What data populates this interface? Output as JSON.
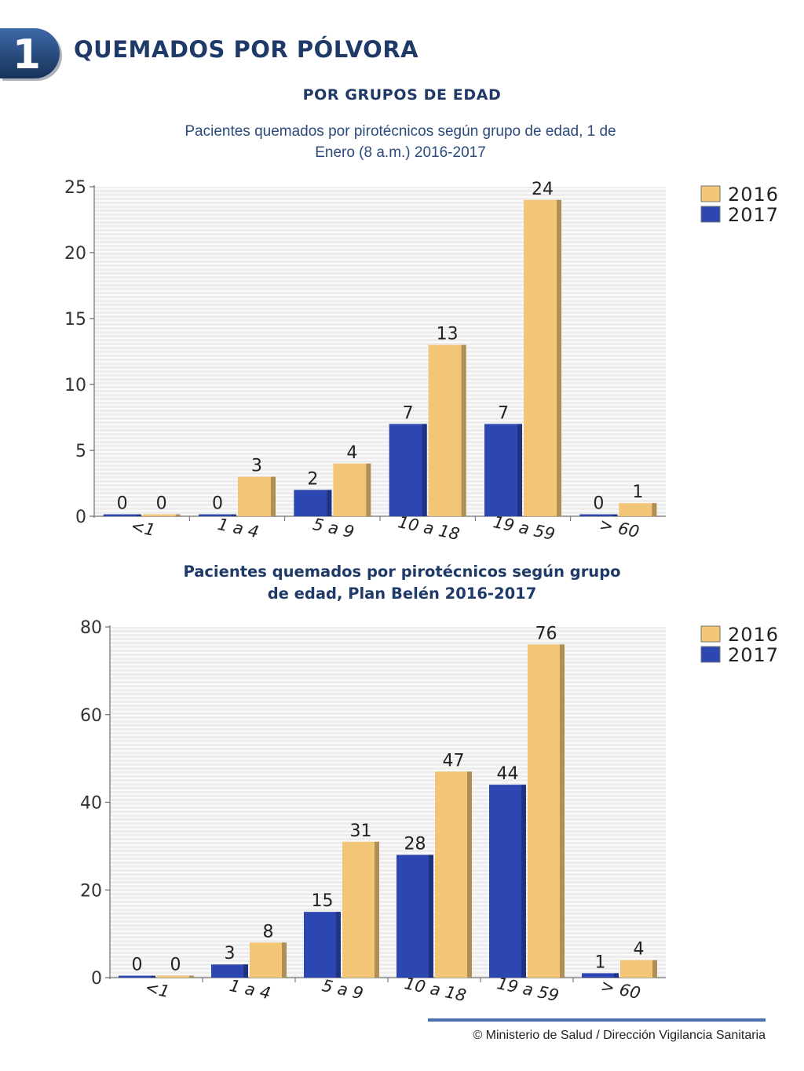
{
  "header": {
    "section_number": "1",
    "title": "QUEMADOS POR PÓLVORA",
    "subtitle": "POR GRUPOS DE EDAD"
  },
  "colors": {
    "series_2016": "#f3c677",
    "series_2017": "#2d47b2",
    "title": "#1f3a68",
    "badge": "#1f3a68"
  },
  "footer": {
    "text": "© Ministerio de Salud / Dirección Vigilancia Sanitaria"
  },
  "chart_data": [
    {
      "type": "bar",
      "title_lines": [
        "Pacientes quemados por pirotécnicos según grupo de edad, 1 de",
        "Enero (8 a.m.) 2016-2017"
      ],
      "categories": [
        "<1",
        "1 a 4",
        "5 a 9",
        "10 a 18",
        "19 a 59",
        "> 60"
      ],
      "series": [
        {
          "name": "2017",
          "values": [
            0,
            0,
            2,
            7,
            7,
            0
          ]
        },
        {
          "name": "2016",
          "values": [
            0,
            3,
            4,
            13,
            24,
            1
          ]
        }
      ],
      "legend": [
        "2016",
        "2017"
      ],
      "legend_position": "top-right",
      "ylim": [
        0,
        25
      ],
      "yticks": [
        0,
        5,
        10,
        15,
        20,
        25
      ],
      "grid": true,
      "xlabel": "",
      "ylabel": ""
    },
    {
      "type": "bar",
      "title_lines": [
        "Pacientes quemados por pirotécnicos según grupo",
        "de edad, Plan Belén 2016-2017"
      ],
      "categories": [
        "<1",
        "1 a 4",
        "5 a 9",
        "10 a 18",
        "19 a 59",
        "> 60"
      ],
      "series": [
        {
          "name": "2017",
          "values": [
            0,
            3,
            15,
            28,
            44,
            1
          ]
        },
        {
          "name": "2016",
          "values": [
            0,
            8,
            31,
            47,
            76,
            4
          ]
        }
      ],
      "legend": [
        "2016",
        "2017"
      ],
      "legend_position": "top-right",
      "ylim": [
        0,
        80
      ],
      "yticks": [
        0,
        20,
        40,
        60,
        80
      ],
      "grid": true,
      "xlabel": "",
      "ylabel": ""
    }
  ]
}
